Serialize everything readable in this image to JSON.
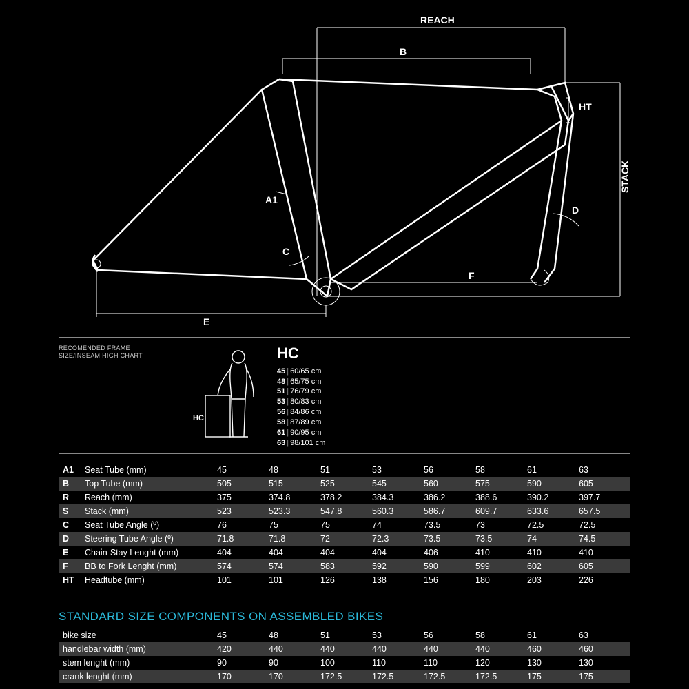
{
  "colors": {
    "background": "#000000",
    "line": "#ffffff",
    "text": "#ffffff",
    "row_shade": "#3a3a3a",
    "accent": "#2bb9d9",
    "muted": "#888888"
  },
  "diagram": {
    "labels": {
      "reach": "REACH",
      "b": "B",
      "ht": "HT",
      "stack": "STACK",
      "a1": "A1",
      "c": "C",
      "d": "D",
      "e": "E",
      "f": "F"
    }
  },
  "recommend": {
    "line1": "RECOMENDED FRAME",
    "line2": "SIZE/INSEAM HIGH CHART",
    "hc_title": "HC",
    "hc_caption": "HC",
    "rows": [
      {
        "size": "45",
        "range": "60/65 cm"
      },
      {
        "size": "48",
        "range": "65/75 cm"
      },
      {
        "size": "51",
        "range": "76/79 cm"
      },
      {
        "size": "53",
        "range": "80/83 cm"
      },
      {
        "size": "56",
        "range": "84/86 cm"
      },
      {
        "size": "58",
        "range": "87/89 cm"
      },
      {
        "size": "61",
        "range": "90/95 cm"
      },
      {
        "size": "63",
        "range": "98/101 cm"
      }
    ]
  },
  "geometry": {
    "rows": [
      {
        "code": "A1",
        "name": "Seat Tube (mm)",
        "v": [
          "45",
          "48",
          "51",
          "53",
          "56",
          "58",
          "61",
          "63"
        ]
      },
      {
        "code": "B",
        "name": "Top Tube (mm)",
        "v": [
          "505",
          "515",
          "525",
          "545",
          "560",
          "575",
          "590",
          "605"
        ]
      },
      {
        "code": "R",
        "name": "Reach (mm)",
        "v": [
          "375",
          "374.8",
          "378.2",
          "384.3",
          "386.2",
          "388.6",
          "390.2",
          "397.7"
        ]
      },
      {
        "code": "S",
        "name": "Stack (mm)",
        "v": [
          "523",
          "523.3",
          "547.8",
          "560.3",
          "586.7",
          "609.7",
          "633.6",
          "657.5"
        ]
      },
      {
        "code": "C",
        "name": "Seat Tube Angle (º)",
        "v": [
          "76",
          "75",
          "75",
          "74",
          "73.5",
          "73",
          "72.5",
          "72.5"
        ]
      },
      {
        "code": "D",
        "name": "Steering Tube Angle (º)",
        "v": [
          "71.8",
          "71.8",
          "72",
          "72.3",
          "73.5",
          "73.5",
          "74",
          "74.5"
        ]
      },
      {
        "code": "E",
        "name": "Chain-Stay Lenght (mm)",
        "v": [
          "404",
          "404",
          "404",
          "404",
          "406",
          "410",
          "410",
          "410"
        ]
      },
      {
        "code": "F",
        "name": "BB to Fork Lenght (mm)",
        "v": [
          "574",
          "574",
          "583",
          "592",
          "590",
          "599",
          "602",
          "605"
        ]
      },
      {
        "code": "HT",
        "name": "Headtube (mm)",
        "v": [
          "101",
          "101",
          "126",
          "138",
          "156",
          "180",
          "203",
          "226"
        ]
      }
    ]
  },
  "components": {
    "title": "STANDARD SIZE COMPONENTS ON ASSEMBLED BIKES",
    "rows": [
      {
        "name": "bike size",
        "v": [
          "45",
          "48",
          "51",
          "53",
          "56",
          "58",
          "61",
          "63"
        ]
      },
      {
        "name": "handlebar width (mm)",
        "v": [
          "420",
          "440",
          "440",
          "440",
          "440",
          "440",
          "460",
          "460"
        ]
      },
      {
        "name": "stem lenght (mm)",
        "v": [
          "90",
          "90",
          "100",
          "110",
          "110",
          "120",
          "130",
          "130"
        ]
      },
      {
        "name": "crank lenght (mm)",
        "v": [
          "170",
          "170",
          "172.5",
          "172.5",
          "172.5",
          "172.5",
          "175",
          "175"
        ]
      }
    ]
  }
}
